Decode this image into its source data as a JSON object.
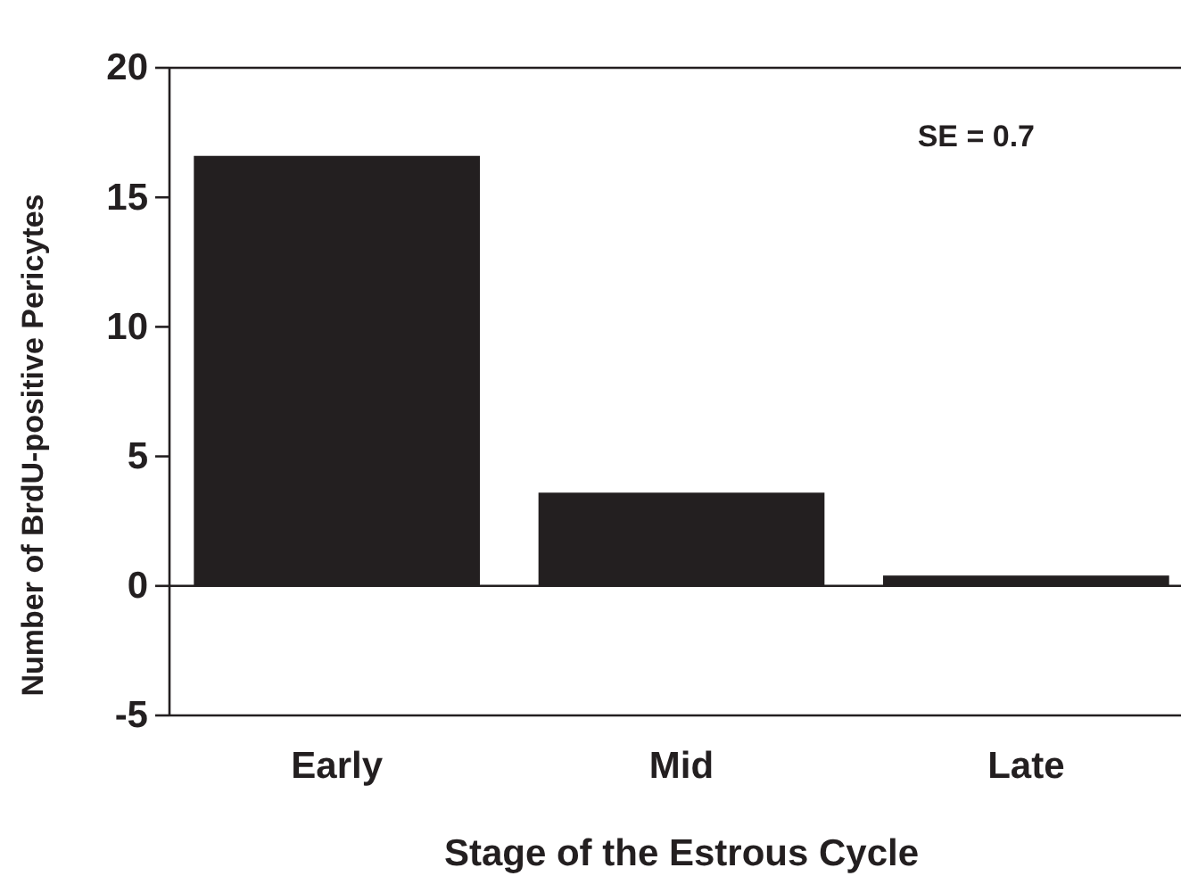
{
  "chart_data": {
    "type": "bar",
    "xlabel": "Stage of the Estrous Cycle",
    "ylabel": "Number of BrdU-positive Pericytes",
    "categories": [
      "Early",
      "Mid",
      "Late"
    ],
    "values": [
      16.6,
      3.6,
      0.4
    ],
    "color": "#231f20",
    "ylim": [
      -5,
      20
    ],
    "yticks": [
      -5,
      0,
      5,
      10,
      15,
      20
    ],
    "ref_lines": [
      {
        "axis": "y",
        "value": 0
      }
    ],
    "annotations": [
      "SE = 0.7"
    ]
  }
}
